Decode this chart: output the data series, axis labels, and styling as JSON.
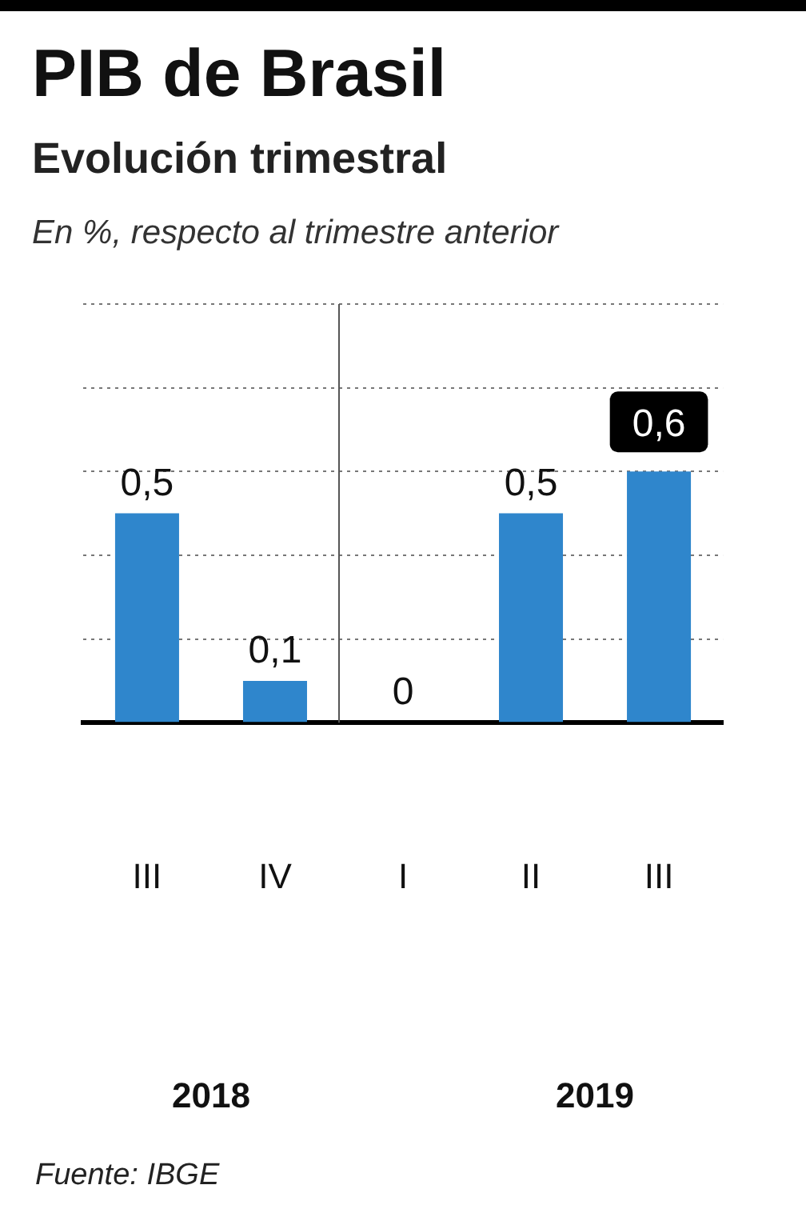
{
  "chart_data": {
    "type": "bar",
    "title": "PIB de Brasil",
    "subtitle": "Evolución trimestral",
    "ylabel": "En %, respecto al trimestre anterior",
    "categories": [
      "III",
      "IV",
      "I",
      "II",
      "III"
    ],
    "values": [
      0.5,
      0.1,
      0,
      0.5,
      0.6
    ],
    "value_labels": [
      "0,5",
      "0,1",
      "0",
      "0,5",
      "0,6"
    ],
    "color": "#2f86cc",
    "ylim": [
      0,
      1
    ],
    "yticks": [
      {
        "value": 0,
        "label": null
      },
      {
        "value": 0.2,
        "label": null
      },
      {
        "value": 0.4,
        "label": null
      },
      {
        "value": 0.6,
        "label": null
      },
      {
        "value": 0.8,
        "label": null
      },
      {
        "value": 1,
        "label": null
      }
    ],
    "ref_lines": [
      {
        "axis": "x",
        "value": "I",
        "color": "#555555"
      }
    ],
    "grid": "y",
    "tick_labels": "x",
    "legend": false,
    "annotations": [
      "2018",
      "2019",
      "Fuente: IBGE"
    ]
  }
}
